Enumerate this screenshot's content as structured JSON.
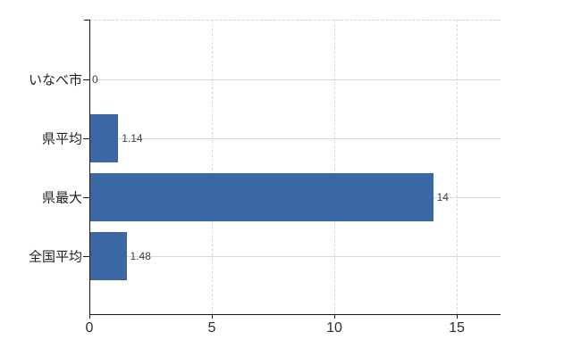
{
  "chart_data": {
    "type": "bar",
    "orientation": "horizontal",
    "title": "",
    "categories": [
      "いなべ市",
      "県平均",
      "県最大",
      "全国平均"
    ],
    "values": [
      0,
      1.14,
      14,
      1.48
    ],
    "value_labels": [
      "0",
      "1.14",
      "14",
      "1.48"
    ],
    "x_ticks": [
      0,
      5,
      10,
      15
    ],
    "x_tick_labels": [
      "0",
      "5",
      "10",
      "15"
    ],
    "xlim": [
      0,
      16.8
    ],
    "grid": true,
    "legend": "none",
    "colors": {
      "bar": "#3a68a4",
      "gridline_horizontal": "#d5dbd5",
      "gridline_vertical": "#d9d9d9",
      "axis": "#1a1a1a",
      "label_text": "#3f3f3f"
    }
  }
}
